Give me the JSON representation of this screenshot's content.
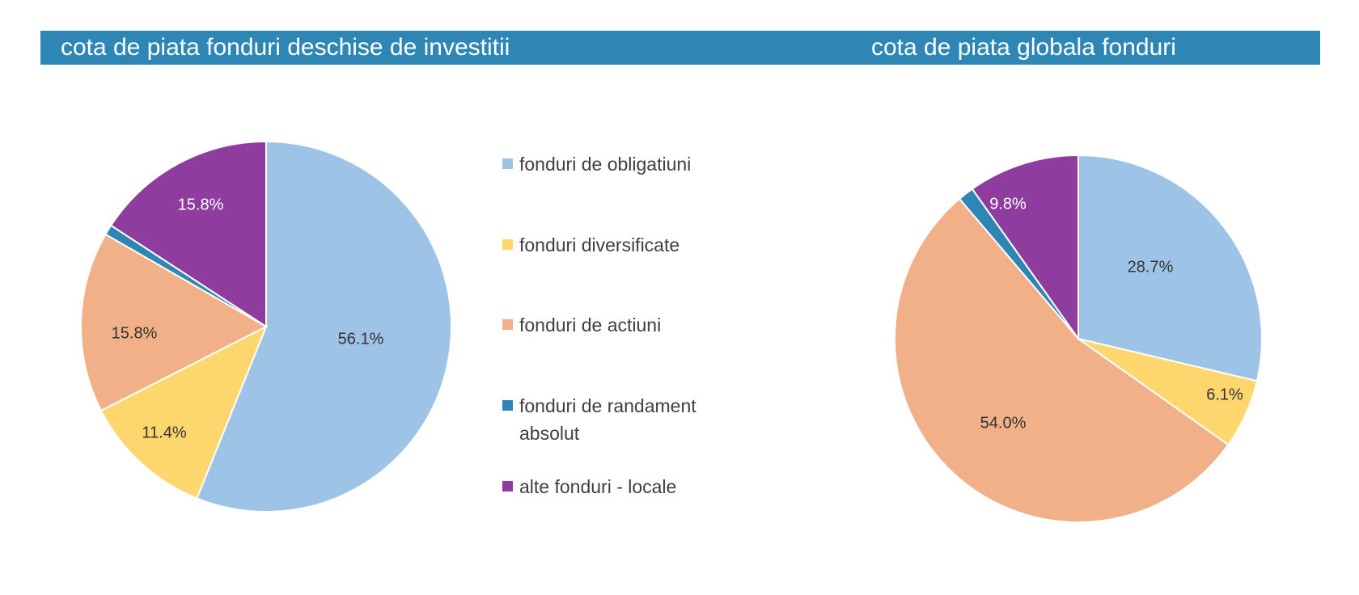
{
  "chart_data": [
    {
      "type": "pie",
      "title": "cota de piata fonduri deschise de investitii",
      "categories": [
        "fonduri de obligatiuni",
        "fonduri diversificate",
        "fonduri de actiuni",
        "fonduri de randament absolut",
        "alte fonduri - locale"
      ],
      "values": [
        56.1,
        11.4,
        15.8,
        0.9,
        15.8
      ],
      "labels": [
        "56.1%",
        "11.4%",
        "15.8%",
        "",
        "15.8%"
      ],
      "label_colors": [
        "#333333",
        "#333333",
        "#333333",
        "#ffffff",
        "#ffffff"
      ],
      "colors": [
        "#9dc3e6",
        "#fdd66e",
        "#f1b088",
        "#2e86b4",
        "#8e3d9f"
      ],
      "legend_position": "right"
    },
    {
      "type": "pie",
      "title": "cota de piata globala fonduri",
      "categories": [
        "fonduri de obligatiuni",
        "fonduri diversificate",
        "fonduri de actiuni",
        "fonduri de randament absolut",
        "alte fonduri - locale"
      ],
      "values": [
        28.7,
        6.1,
        54.0,
        1.4,
        9.8
      ],
      "labels": [
        "28.7%",
        "6.1%",
        "54.0%",
        "",
        "9.8%"
      ],
      "label_colors": [
        "#333333",
        "#333333",
        "#333333",
        "#ffffff",
        "#ffffff"
      ],
      "colors": [
        "#9dc3e6",
        "#fdd66e",
        "#f1b088",
        "#2e86b4",
        "#8e3d9f"
      ]
    }
  ],
  "legend": {
    "items": [
      {
        "label": "fonduri de obligatiuni",
        "color": "#9dc3e6"
      },
      {
        "label": "fonduri diversificate",
        "color": "#fdd66e"
      },
      {
        "label": "fonduri de actiuni",
        "color": "#f1b088"
      },
      {
        "label": "fonduri de randament absolut",
        "color": "#2e86b4"
      },
      {
        "label": "alte fonduri - locale",
        "color": "#8e3d9f"
      }
    ]
  },
  "header": {
    "background": "#2e86b4"
  }
}
